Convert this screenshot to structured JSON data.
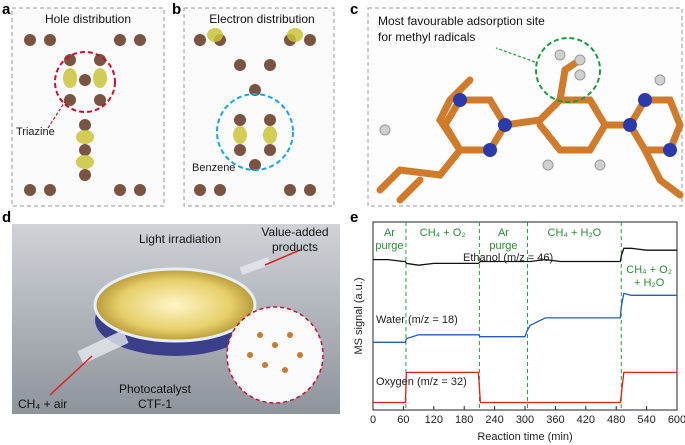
{
  "panels": {
    "a": {
      "label": "a",
      "title": "Hole distribution",
      "annotation": "Triazine"
    },
    "b": {
      "label": "b",
      "title": "Electron distribution",
      "annotation": "Benzene"
    },
    "c": {
      "label": "c",
      "annotation": [
        "Most favourable adsorption site",
        "for methyl radicals"
      ]
    },
    "d": {
      "label": "d",
      "light": "Light irradiation",
      "products": [
        "Value-added",
        "products"
      ],
      "feed": "CH₄ + air",
      "catalyst": [
        "Photocatalyst",
        "CTF-1"
      ]
    },
    "e": {
      "label": "e"
    }
  },
  "chart_data": {
    "type": "line",
    "xlabel": "Reaction time (min)",
    "ylabel": "MS signal (a.u.)",
    "x": [
      0,
      30,
      60,
      64,
      66,
      90,
      120,
      150,
      180,
      208,
      212,
      240,
      270,
      300,
      304,
      310,
      340,
      370,
      400,
      430,
      460,
      488,
      490,
      495,
      510,
      540,
      570,
      600
    ],
    "xlim": [
      0,
      600
    ],
    "xticks": [
      0,
      60,
      120,
      180,
      240,
      300,
      360,
      420,
      480,
      540,
      600
    ],
    "ylim": [
      0,
      100
    ],
    "boundaries": [
      65,
      210,
      305,
      490
    ],
    "phase_labels": [
      [
        "Ar",
        "purge"
      ],
      [
        "CH₄ + O₂"
      ],
      [
        "Ar",
        "purge"
      ],
      [
        "CH₄ + H₂O"
      ],
      [
        "CH₄ + O₂",
        "+ H₂O"
      ]
    ],
    "series": [
      {
        "name": "Ethanol (m/z = 46)",
        "color": "#111111",
        "values": [
          80,
          80,
          79,
          79,
          78,
          77,
          78,
          78,
          78,
          78,
          79,
          79,
          79,
          79,
          79,
          79,
          80,
          79,
          79,
          79,
          79,
          79,
          82,
          86,
          86,
          85,
          85,
          85
        ]
      },
      {
        "name": "Water (m/z = 18)",
        "color": "#2a5db0",
        "values": [
          36,
          36,
          36,
          36,
          38,
          40,
          40,
          40,
          40,
          40,
          39,
          39,
          39,
          39,
          42,
          45,
          49,
          49,
          49,
          49,
          49,
          49,
          55,
          62,
          61,
          61,
          61,
          61
        ]
      },
      {
        "name": "Oxygen (m/z = 32)",
        "color": "#e02020",
        "values": [
          4,
          4,
          4,
          4,
          20,
          20,
          20,
          20,
          20,
          20,
          4,
          4,
          4,
          4,
          4,
          4,
          4,
          4,
          4,
          4,
          4,
          4,
          8,
          20,
          20,
          20,
          20,
          20
        ]
      }
    ]
  }
}
